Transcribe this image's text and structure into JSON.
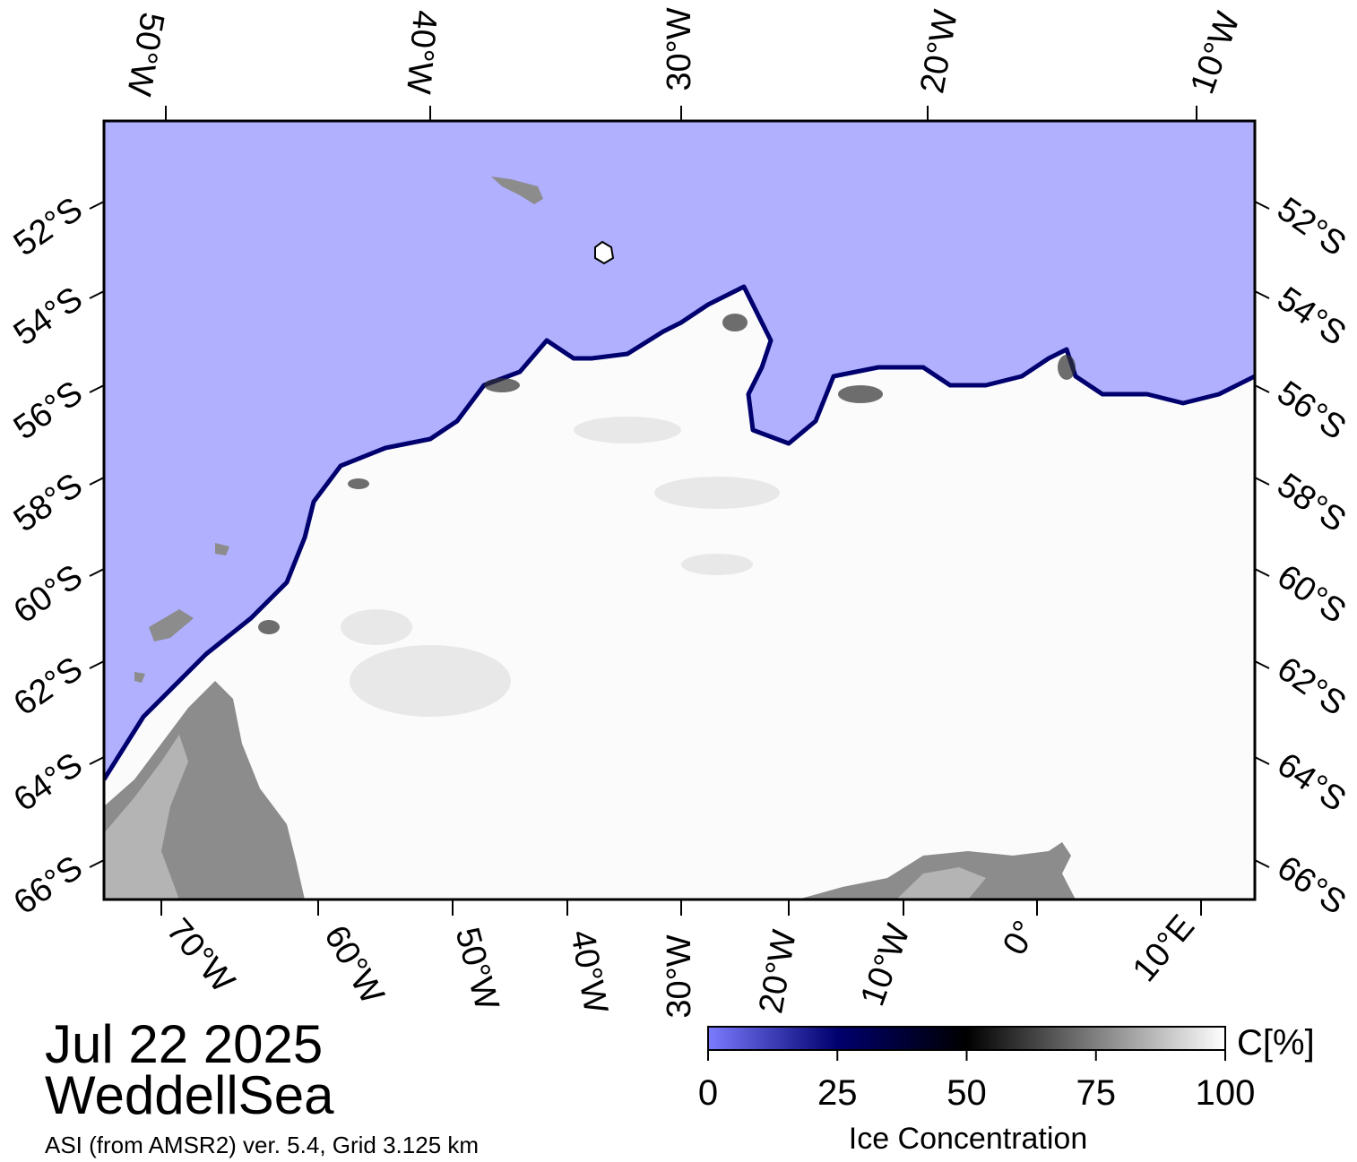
{
  "header": {
    "date": "Jul 22 2025",
    "region": "WeddellSea",
    "source": "ASI (from AMSR2) ver. 5.4,  Grid 3.125 km"
  },
  "map": {
    "top_lon_labels": [
      "50°W",
      "40°W",
      "30°W",
      "20°W",
      "10°W"
    ],
    "bottom_lon_labels": [
      "70°W",
      "60°W",
      "50°W",
      "40°W",
      "30°W",
      "20°W",
      "10°W",
      "0°",
      "10°E"
    ],
    "left_lat_labels": [
      "52°S",
      "54°S",
      "56°S",
      "58°S",
      "60°S",
      "62°S",
      "64°S",
      "66°S"
    ],
    "right_lat_labels": [
      "52°S",
      "54°S",
      "56°S",
      "58°S",
      "60°S",
      "62°S",
      "64°S",
      "66°S"
    ],
    "colors": {
      "open_ocean": "#b0b0ff",
      "ice": "#ffffff",
      "land": "#8c8c8c",
      "land_light": "#b4b4b4",
      "ice_edge": "#00006e"
    }
  },
  "colorbar": {
    "unit": "C[%]",
    "label": "Ice Concentration",
    "ticks": [
      "0",
      "25",
      "50",
      "75",
      "100"
    ],
    "range": [
      0,
      100
    ],
    "stops": [
      {
        "value": 0,
        "color": "#7b7bff"
      },
      {
        "value": 25,
        "color": "#00006e"
      },
      {
        "value": 50,
        "color": "#000000"
      },
      {
        "value": 100,
        "color": "#ffffff"
      }
    ]
  }
}
